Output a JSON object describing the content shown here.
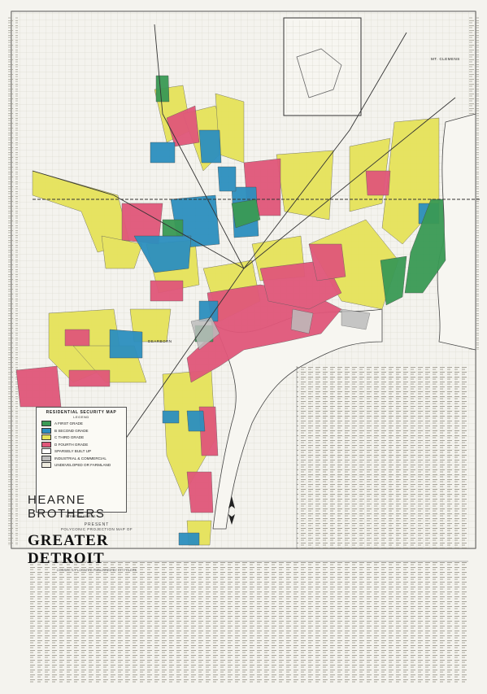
{
  "title": {
    "publisher": "HEARNE BROTHERS",
    "present": "PRESENT",
    "subtitle": "POLYCONIC PROJECTION MAP OF",
    "main": "GREATER DETROIT",
    "note": "CORRECTLY LOCATED PUBLISHED BY CITY CLERK"
  },
  "legend": {
    "title": "RESIDENTIAL SECURITY MAP",
    "subtitle": "LEGEND",
    "items": [
      {
        "label": "A FIRST GRADE",
        "color": "#3a9a55"
      },
      {
        "label": "B SECOND GRADE",
        "color": "#2c8fbf"
      },
      {
        "label": "C THIRD GRADE",
        "color": "#e6e35a"
      },
      {
        "label": "D FOURTH GRADE",
        "color": "#e0577a"
      },
      {
        "label": "SPARSELY BUILT UP",
        "color": "#ffffff"
      },
      {
        "label": "INDUSTRIAL & COMMERCIAL",
        "color": "#bdbdbd"
      },
      {
        "label": "UNDEVELOPED OR FARMLAND",
        "color": "#efece0"
      }
    ],
    "street_numbers": "STREET NUMBERS"
  },
  "map_labels": {
    "dearborn": "DEARBORN",
    "mt_clemens": "MT. CLEMENS"
  }
}
